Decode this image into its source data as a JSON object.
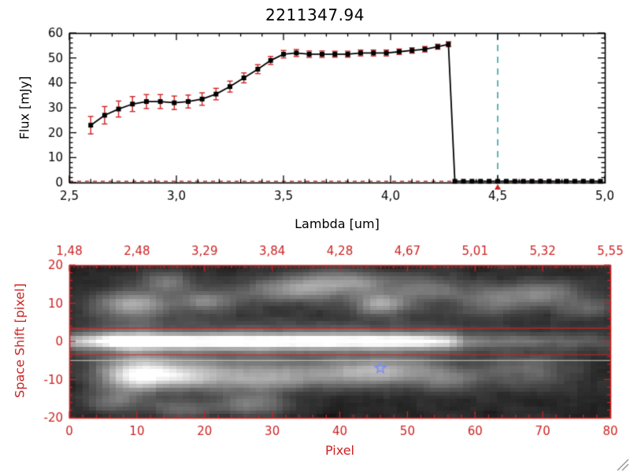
{
  "colors": {
    "accent_red": "#cc2222",
    "dashed_teal": "#2e9b9b",
    "star_blue": "#7b8cfa",
    "axis_black": "#000000",
    "resize_gray": "#999999"
  },
  "icons": {
    "resize_handle": "diagonal-lines"
  },
  "chart_data": [
    {
      "type": "line",
      "title": "2211347.94",
      "xlabel": "Lambda [um]",
      "ylabel": "Flux [mJy]",
      "xlim": [
        2.5,
        5.0
      ],
      "ylim": [
        0,
        60
      ],
      "x_ticks": [
        2.5,
        3.0,
        3.5,
        4.0,
        4.5,
        5.0
      ],
      "x_tick_labels": [
        "2,5",
        "3,0",
        "3,5",
        "4,0",
        "4,5",
        "5,0"
      ],
      "y_ticks": [
        0,
        10,
        20,
        30,
        40,
        50,
        60
      ],
      "x": [
        2.6,
        2.665,
        2.73,
        2.795,
        2.86,
        2.925,
        2.99,
        3.055,
        3.12,
        3.185,
        3.25,
        3.315,
        3.38,
        3.44,
        3.5,
        3.56,
        3.62,
        3.68,
        3.74,
        3.8,
        3.86,
        3.92,
        3.98,
        4.04,
        4.1,
        4.16,
        4.22,
        4.27,
        4.3,
        4.34,
        4.38,
        4.42,
        4.46,
        4.5,
        4.54,
        4.58,
        4.62,
        4.66,
        4.7,
        4.74,
        4.78,
        4.82,
        4.86,
        4.9,
        4.94,
        4.98
      ],
      "y": [
        23,
        27,
        29.5,
        31.5,
        32.5,
        32.5,
        32,
        32.5,
        33.5,
        35.5,
        38.5,
        42,
        45.5,
        49,
        51.5,
        52,
        51.5,
        51.5,
        51.5,
        51.5,
        52,
        52,
        52,
        52.5,
        53,
        53.5,
        54.5,
        55.5,
        0.5,
        0.5,
        0.5,
        0.5,
        0.5,
        0.5,
        0.5,
        0.5,
        0.5,
        0.5,
        0.5,
        0.5,
        0.5,
        0.5,
        0.5,
        0.5,
        0.5,
        0.5
      ],
      "yerr": [
        3.5,
        3.5,
        3.2,
        3.0,
        2.8,
        2.8,
        2.7,
        2.6,
        2.5,
        2.3,
        2.2,
        2.0,
        1.8,
        1.6,
        1.5,
        1.4,
        1.3,
        1.3,
        1.2,
        1.2,
        1.2,
        1.2,
        1.2,
        1.1,
        1.1,
        1.1,
        1.0,
        1.0,
        0.3,
        0.3,
        0.3,
        0.3,
        0.3,
        0.3,
        0.3,
        0.3,
        0.3,
        0.3,
        0.3,
        0.3,
        0.3,
        0.3,
        0.3,
        0.3,
        0.3,
        0.3
      ],
      "reference_vline": {
        "x": 4.5,
        "style": "dashed"
      },
      "zero_hline": {
        "y": 0.5,
        "style": "dashed"
      },
      "marker_arrow_x": 4.5,
      "grid": false,
      "legend": false
    },
    {
      "type": "heatmap",
      "xlabel": "Pixel",
      "ylabel": "Space Shift [pixel]",
      "xlim": [
        0,
        80
      ],
      "ylim": [
        -20,
        20
      ],
      "x_ticks": [
        0,
        10,
        20,
        30,
        40,
        50,
        60,
        70,
        80
      ],
      "y_ticks": [
        -20,
        -10,
        0,
        10,
        20
      ],
      "top_axis_labels": [
        "1,48",
        "2,48",
        "3,29",
        "3,84",
        "4,28",
        "4,67",
        "5,01",
        "5,32",
        "5,55"
      ],
      "top_axis_positions": [
        0,
        10,
        20,
        30,
        40,
        50,
        60,
        70,
        80
      ],
      "aperture_lines": [
        3.5,
        -3.5
      ],
      "sky_line": -5,
      "star_marker": {
        "x": 46,
        "y": -7
      },
      "trace": {
        "sigma": 1.3,
        "halo": 0.32,
        "halo_sigma": 4,
        "profile": [
          [
            0,
            0.4
          ],
          [
            3,
            0.6
          ],
          [
            7,
            0.95
          ],
          [
            10,
            1.0
          ],
          [
            14,
            0.85
          ],
          [
            20,
            0.8
          ],
          [
            28,
            0.85
          ],
          [
            36,
            0.8
          ],
          [
            44,
            0.8
          ],
          [
            52,
            0.75
          ],
          [
            56,
            0.6
          ],
          [
            59,
            0.3
          ],
          [
            64,
            0.22
          ],
          [
            72,
            0.18
          ],
          [
            80,
            0.15
          ]
        ]
      },
      "blobs": [
        [
          9,
          10,
          4,
          2.5,
          0.5
        ],
        [
          14,
          16,
          3,
          2,
          0.3
        ],
        [
          20,
          11,
          3,
          2,
          0.35
        ],
        [
          33,
          14,
          6,
          2.5,
          0.4
        ],
        [
          41,
          16,
          5,
          2.2,
          0.35
        ],
        [
          46,
          10,
          3,
          2,
          0.45
        ],
        [
          53,
          14,
          4,
          2.5,
          0.3
        ],
        [
          63,
          11,
          4,
          3,
          0.28
        ],
        [
          71,
          13,
          4,
          2.5,
          0.33
        ],
        [
          77,
          9,
          3,
          2,
          0.22
        ],
        [
          10,
          -9,
          4,
          3,
          0.85
        ],
        [
          18,
          -9,
          4,
          2.5,
          0.5
        ],
        [
          27,
          -10,
          5,
          3,
          0.4
        ],
        [
          27,
          -17,
          4,
          2,
          0.3
        ],
        [
          38,
          -9,
          6,
          2.5,
          0.35
        ],
        [
          47,
          -8,
          5,
          2.5,
          0.4
        ],
        [
          56,
          -10,
          4,
          2.5,
          0.28
        ],
        [
          68,
          -8,
          5,
          3,
          0.26
        ],
        [
          6,
          -16,
          3,
          2,
          0.28
        ],
        [
          16,
          -18,
          4,
          2,
          0.22
        ]
      ],
      "noise": {
        "seed": 13,
        "base": 0.04,
        "amplitude": 0.18
      }
    }
  ]
}
